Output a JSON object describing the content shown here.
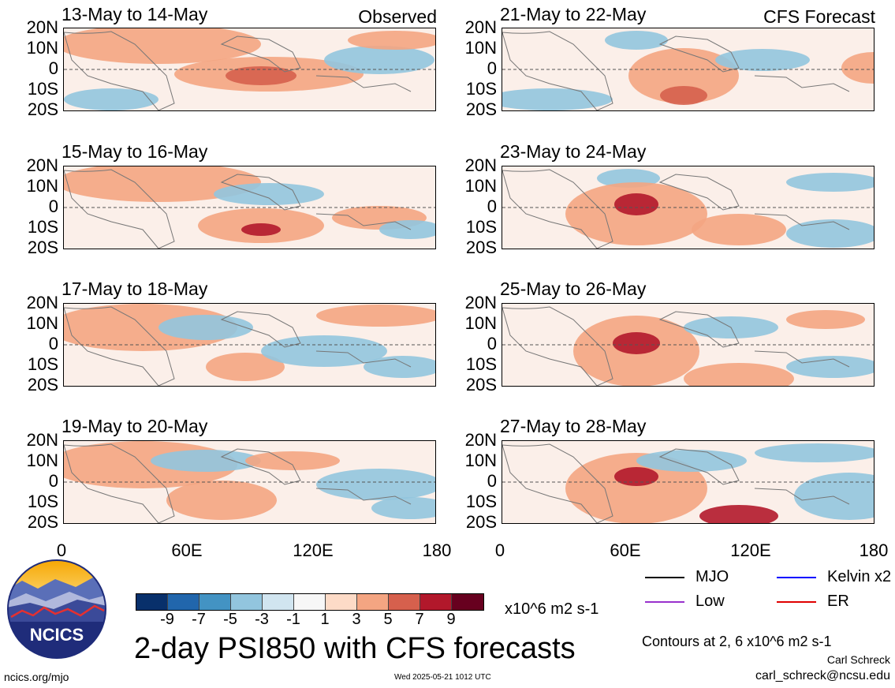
{
  "panels": [
    {
      "title": "13-May to 14-May",
      "note": "Observed"
    },
    {
      "title": "21-May to 22-May",
      "note": "CFS Forecast"
    },
    {
      "title": "15-May to 16-May",
      "note": ""
    },
    {
      "title": "23-May to 24-May",
      "note": ""
    },
    {
      "title": "17-May to 18-May",
      "note": ""
    },
    {
      "title": "25-May to 26-May",
      "note": ""
    },
    {
      "title": "19-May to 20-May",
      "note": ""
    },
    {
      "title": "27-May to 28-May",
      "note": ""
    }
  ],
  "lat_labels": [
    "20N",
    "10N",
    "0",
    "10S",
    "20S"
  ],
  "lon_labels": [
    "0",
    "60E",
    "120E",
    "180"
  ],
  "colorbar": {
    "ticks": [
      "-9",
      "-7",
      "-5",
      "-3",
      "-1",
      "1",
      "3",
      "5",
      "7",
      "9"
    ],
    "colors": [
      "#08306b",
      "#2166ac",
      "#4393c3",
      "#92c5de",
      "#d1e5f0",
      "#f7f7f7",
      "#fddbc7",
      "#f4a582",
      "#d6604d",
      "#b2182b",
      "#67001f"
    ],
    "units": "x10^6 m2 s-1"
  },
  "legend": [
    {
      "label": "MJO",
      "color": "#000000"
    },
    {
      "label": "Kelvin x2",
      "color": "#0000ff"
    },
    {
      "label": "Low",
      "color": "#9932cc"
    },
    {
      "label": "ER",
      "color": "#e00000"
    }
  ],
  "logo_text": "NCICS",
  "main_title": "2-day PSI850 with CFS forecasts",
  "contours_note": "Contours at 2, 6 x10^6 m2 s-1",
  "author": "Carl Schreck",
  "email": "carl_schreck@ncsu.edu",
  "site": "ncics.org/mjo",
  "timestamp": "Wed 2025-05-21 1012 UTC"
}
